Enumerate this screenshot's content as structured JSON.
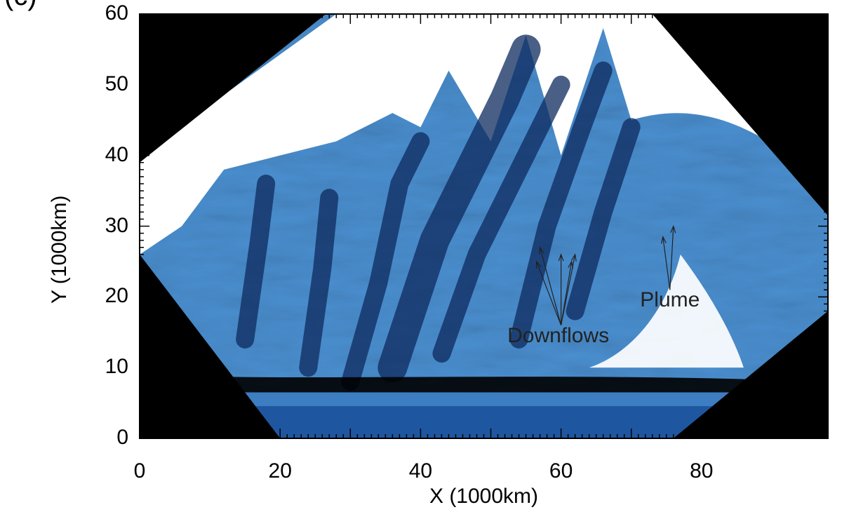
{
  "panel_label": "(c)",
  "chart_data": {
    "type": "heatmap",
    "xlabel": "X (1000km)",
    "ylabel": "Y (1000km)",
    "xlim": [
      0,
      98
    ],
    "ylim": [
      0,
      60
    ],
    "xticks": [
      "0",
      "20",
      "40",
      "60",
      "80"
    ],
    "yticks": [
      "0",
      "10",
      "20",
      "30",
      "40",
      "50",
      "60"
    ],
    "xtick_values": [
      0,
      20,
      40,
      60,
      80
    ],
    "ytick_values": [
      0,
      10,
      20,
      30,
      40,
      50,
      60
    ],
    "colormap": [
      "#000000",
      "#0e2a5e",
      "#1f56a0",
      "#4a8fd0",
      "#9cc8ee",
      "#ffffff"
    ],
    "annotations": [
      {
        "text": "Downflows",
        "x": 60,
        "y": 16,
        "arrows_to": [
          [
            57,
            27
          ],
          [
            60,
            26
          ],
          [
            62,
            26
          ],
          [
            61.5,
            25
          ],
          [
            56.5,
            25
          ]
        ]
      },
      {
        "text": "Plume",
        "x": 75.5,
        "y": 21,
        "arrows_to": [
          [
            76,
            30
          ],
          [
            74.5,
            28.5
          ]
        ]
      }
    ]
  },
  "colors": {
    "mask": "#000000",
    "axes": "#000000",
    "annotation": "#222222"
  }
}
